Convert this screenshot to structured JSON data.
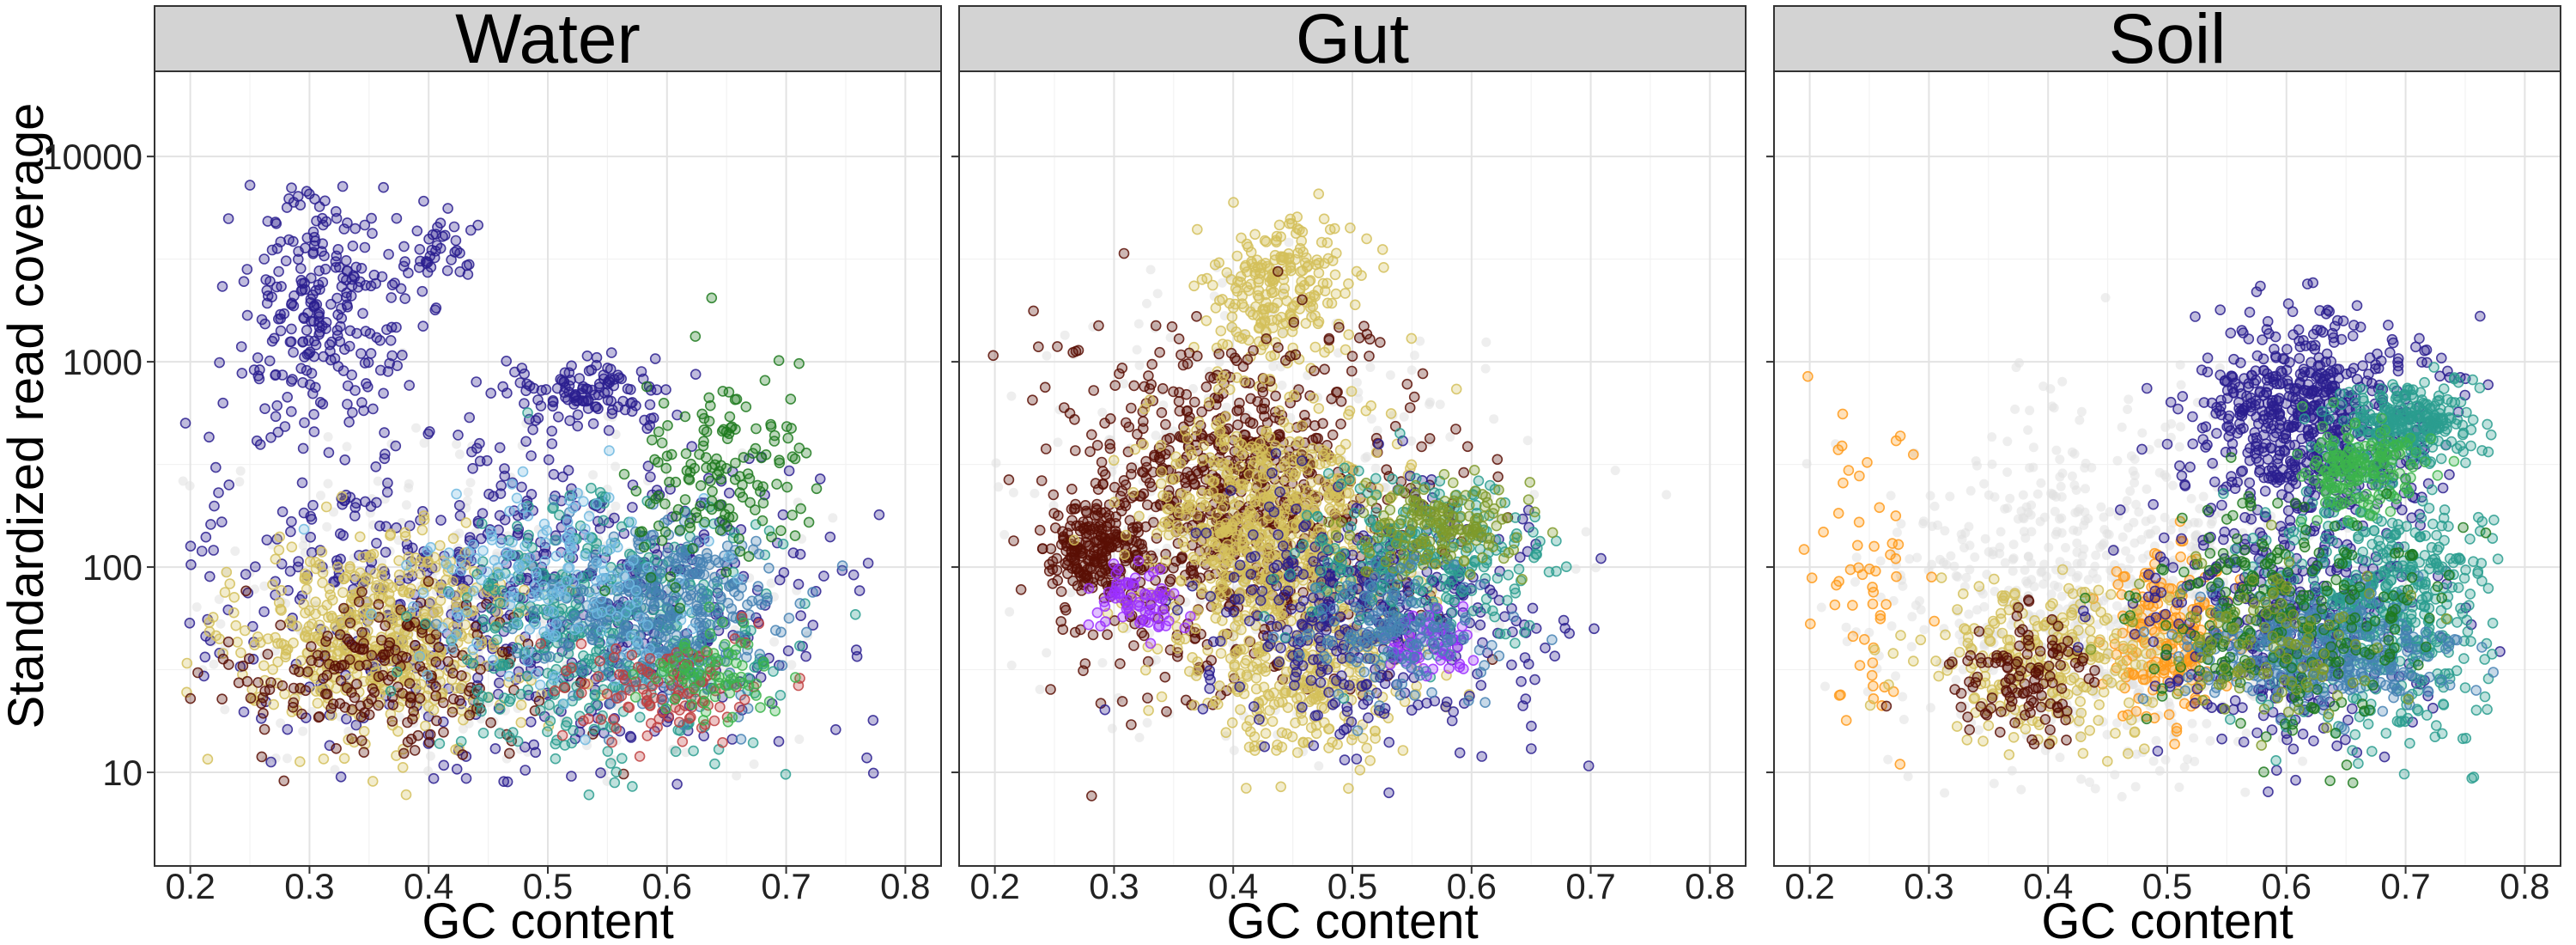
{
  "chart_data": {
    "type": "scatter",
    "facets": [
      "Water",
      "Gut",
      "Soil"
    ],
    "xlabel": "GC content",
    "ylabel": "Standardized read coverage",
    "xlim": [
      0.17,
      0.83
    ],
    "ylim": [
      3.5,
      26000
    ],
    "y_scale": "log10",
    "x_ticks": [
      0.2,
      0.3,
      0.4,
      0.5,
      0.6,
      0.7,
      0.8
    ],
    "x_tick_labels": [
      "0.2",
      "0.3",
      "0.4",
      "0.5",
      "0.6",
      "0.7",
      "0.8"
    ],
    "y_ticks": [
      10,
      100,
      1000,
      10000
    ],
    "y_tick_labels": [
      "10",
      "100",
      "1000",
      "10000"
    ],
    "grid": true,
    "legend": "none",
    "series_colors": [
      "#2a1f8f",
      "#d4bf5a",
      "#5a0f05",
      "#2a9d8f",
      "#4682b4",
      "#1e7a1e",
      "#ff9a1a",
      "#9b30ff",
      "#3cb44b",
      "#7f9a2a",
      "#c04040",
      "#e0e0e0"
    ],
    "panels": [
      {
        "facet": "Water",
        "clusters": [
          {
            "color": "#e0e0e0",
            "gc": 0.45,
            "gc_sd": 0.13,
            "cov": 60,
            "cov_sd": 0.42,
            "n": 380
          },
          {
            "color": "#2a1f8f",
            "gc": 0.31,
            "gc_sd": 0.035,
            "cov": 1800,
            "cov_sd": 0.3,
            "n": 260
          },
          {
            "color": "#2a1f8f",
            "gc": 0.47,
            "gc_sd": 0.14,
            "cov": 70,
            "cov_sd": 0.38,
            "n": 700
          },
          {
            "color": "#2a1f8f",
            "gc": 0.53,
            "gc_sd": 0.03,
            "cov": 700,
            "cov_sd": 0.08,
            "n": 120
          },
          {
            "color": "#2a1f8f",
            "gc": 0.41,
            "gc_sd": 0.02,
            "cov": 3500,
            "cov_sd": 0.12,
            "n": 40
          },
          {
            "color": "#d4bf5a",
            "gc": 0.36,
            "gc_sd": 0.06,
            "cov": 45,
            "cov_sd": 0.25,
            "n": 520
          },
          {
            "color": "#5a0f05",
            "gc": 0.37,
            "gc_sd": 0.07,
            "cov": 28,
            "cov_sd": 0.2,
            "n": 200
          },
          {
            "color": "#2a9d8f",
            "gc": 0.55,
            "gc_sd": 0.07,
            "cov": 50,
            "cov_sd": 0.3,
            "n": 420
          },
          {
            "color": "#4682b4",
            "gc": 0.6,
            "gc_sd": 0.05,
            "cov": 60,
            "cov_sd": 0.22,
            "n": 360
          },
          {
            "color": "#6fb8e0",
            "gc": 0.51,
            "gc_sd": 0.06,
            "cov": 90,
            "cov_sd": 0.25,
            "n": 180
          },
          {
            "color": "#1e7a1e",
            "gc": 0.64,
            "gc_sd": 0.04,
            "cov": 260,
            "cov_sd": 0.25,
            "n": 150
          },
          {
            "color": "#c04040",
            "gc": 0.6,
            "gc_sd": 0.04,
            "cov": 25,
            "cov_sd": 0.12,
            "n": 110
          },
          {
            "color": "#3cb44b",
            "gc": 0.63,
            "gc_sd": 0.03,
            "cov": 30,
            "cov_sd": 0.12,
            "n": 80
          }
        ]
      },
      {
        "facet": "Gut",
        "clusters": [
          {
            "color": "#e0e0e0",
            "gc": 0.43,
            "gc_sd": 0.12,
            "cov": 200,
            "cov_sd": 0.55,
            "n": 340
          },
          {
            "color": "#d4bf5a",
            "gc": 0.44,
            "gc_sd": 0.03,
            "cov": 2200,
            "cov_sd": 0.18,
            "n": 240
          },
          {
            "color": "#5a0f05",
            "gc": 0.4,
            "gc_sd": 0.075,
            "cov": 200,
            "cov_sd": 0.4,
            "n": 850
          },
          {
            "color": "#5a0f05",
            "gc": 0.28,
            "gc_sd": 0.02,
            "cov": 120,
            "cov_sd": 0.12,
            "n": 180
          },
          {
            "color": "#d4bf5a",
            "gc": 0.43,
            "gc_sd": 0.05,
            "cov": 150,
            "cov_sd": 0.3,
            "n": 650
          },
          {
            "color": "#d4bf5a",
            "gc": 0.46,
            "gc_sd": 0.05,
            "cov": 30,
            "cov_sd": 0.2,
            "n": 300
          },
          {
            "color": "#2a1f8f",
            "gc": 0.52,
            "gc_sd": 0.07,
            "cov": 60,
            "cov_sd": 0.3,
            "n": 420
          },
          {
            "color": "#2a9d8f",
            "gc": 0.56,
            "gc_sd": 0.05,
            "cov": 110,
            "cov_sd": 0.2,
            "n": 260
          },
          {
            "color": "#7f9a2a",
            "gc": 0.57,
            "gc_sd": 0.04,
            "cov": 160,
            "cov_sd": 0.1,
            "n": 170
          },
          {
            "color": "#9b30ff",
            "gc": 0.32,
            "gc_sd": 0.02,
            "cov": 70,
            "cov_sd": 0.08,
            "n": 70
          },
          {
            "color": "#9b30ff",
            "gc": 0.57,
            "gc_sd": 0.02,
            "cov": 42,
            "cov_sd": 0.06,
            "n": 60
          },
          {
            "color": "#4682b4",
            "gc": 0.54,
            "gc_sd": 0.04,
            "cov": 45,
            "cov_sd": 0.15,
            "n": 150
          }
        ]
      },
      {
        "facet": "Soil",
        "clusters": [
          {
            "color": "#e0e0e0",
            "gc": 0.44,
            "gc_sd": 0.09,
            "cov": 70,
            "cov_sd": 0.45,
            "n": 700
          },
          {
            "color": "#ff9a1a",
            "gc": 0.25,
            "gc_sd": 0.03,
            "cov": 80,
            "cov_sd": 0.35,
            "n": 60
          },
          {
            "color": "#ff9a1a",
            "gc": 0.5,
            "gc_sd": 0.025,
            "cov": 45,
            "cov_sd": 0.2,
            "n": 210
          },
          {
            "color": "#d4bf5a",
            "gc": 0.4,
            "gc_sd": 0.05,
            "cov": 35,
            "cov_sd": 0.2,
            "n": 260
          },
          {
            "color": "#5a0f05",
            "gc": 0.38,
            "gc_sd": 0.03,
            "cov": 30,
            "cov_sd": 0.15,
            "n": 120
          },
          {
            "color": "#2a1f8f",
            "gc": 0.62,
            "gc_sd": 0.05,
            "cov": 500,
            "cov_sd": 0.25,
            "n": 650
          },
          {
            "color": "#2a1f8f",
            "gc": 0.6,
            "gc_sd": 0.06,
            "cov": 50,
            "cov_sd": 0.3,
            "n": 400
          },
          {
            "color": "#2a9d8f",
            "gc": 0.7,
            "gc_sd": 0.03,
            "cov": 500,
            "cov_sd": 0.1,
            "n": 260
          },
          {
            "color": "#2a9d8f",
            "gc": 0.68,
            "gc_sd": 0.05,
            "cov": 60,
            "cov_sd": 0.3,
            "n": 520
          },
          {
            "color": "#3cb44b",
            "gc": 0.66,
            "gc_sd": 0.025,
            "cov": 300,
            "cov_sd": 0.1,
            "n": 180
          },
          {
            "color": "#4682b4",
            "gc": 0.63,
            "gc_sd": 0.05,
            "cov": 40,
            "cov_sd": 0.15,
            "n": 300
          },
          {
            "color": "#1e7a1e",
            "gc": 0.6,
            "gc_sd": 0.06,
            "cov": 60,
            "cov_sd": 0.3,
            "n": 250
          },
          {
            "color": "#7f9a2a",
            "gc": 0.58,
            "gc_sd": 0.05,
            "cov": 40,
            "cov_sd": 0.2,
            "n": 120
          }
        ]
      }
    ]
  }
}
